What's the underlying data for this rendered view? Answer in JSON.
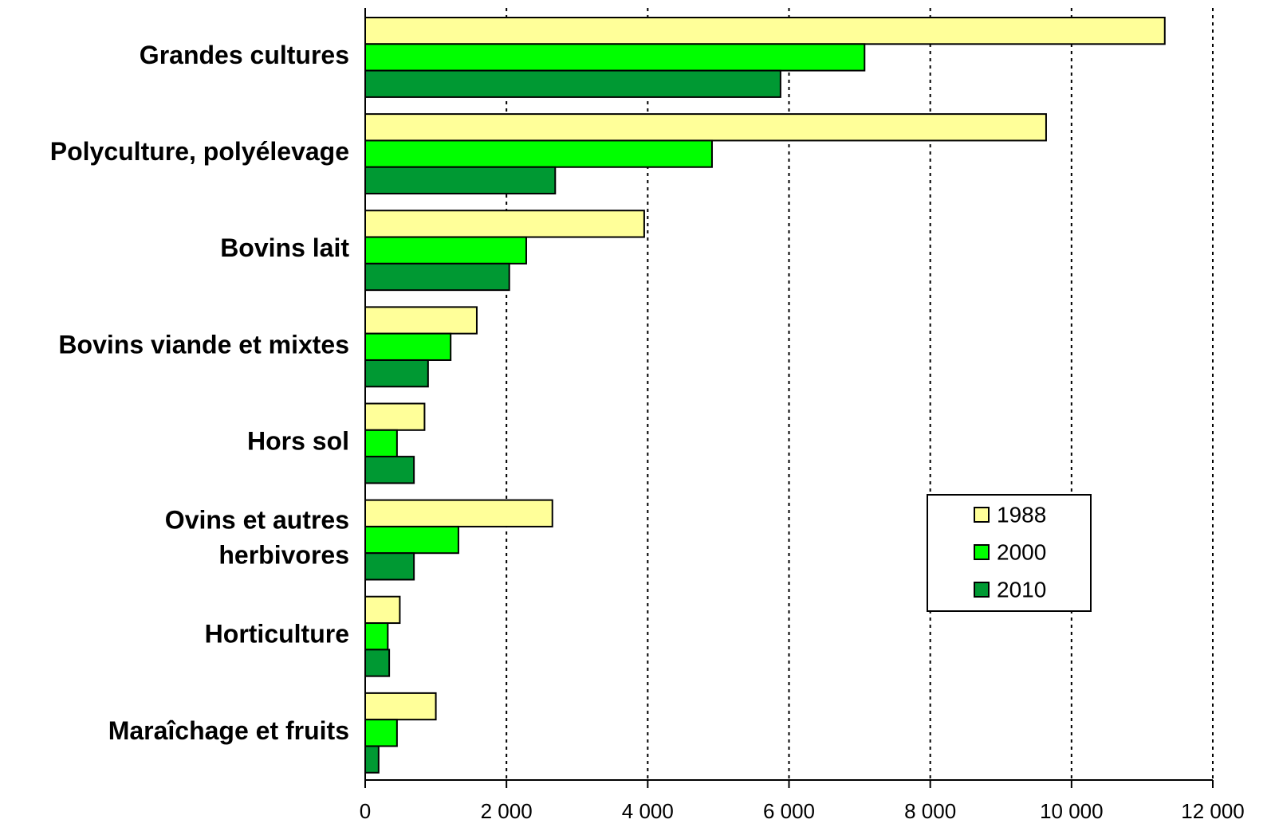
{
  "chart_data": {
    "type": "bar",
    "orientation": "horizontal",
    "categories": [
      "Grandes cultures",
      "Polyculture, polyélevage",
      "Bovins lait",
      "Bovins viande et mixtes",
      "Hors sol",
      "Ovins et autres\nherbivores",
      "Horticulture",
      "Maraîchage et fruits"
    ],
    "series": [
      {
        "name": "1988",
        "color": "#ffff99",
        "values": [
          11320,
          9640,
          3950,
          1580,
          840,
          2650,
          490,
          1000
        ]
      },
      {
        "name": "2000",
        "color": "#00ff00",
        "values": [
          7070,
          4910,
          2280,
          1210,
          450,
          1320,
          320,
          450
        ]
      },
      {
        "name": "2010",
        "color": "#009933",
        "values": [
          5880,
          2690,
          2040,
          890,
          690,
          690,
          340,
          190
        ]
      }
    ],
    "xlim": [
      0,
      12000
    ],
    "xticks": [
      0,
      {
        "value": 2000,
        "label": "2 000"
      },
      {
        "value": 4000,
        "label": "4 000"
      },
      {
        "value": 6000,
        "label": "6 000"
      },
      {
        "value": 8000,
        "label": "8 000"
      },
      {
        "value": 10000,
        "label": "10 000"
      },
      {
        "value": 12000,
        "label": "12 000"
      }
    ],
    "grid": true,
    "legend": "right"
  }
}
